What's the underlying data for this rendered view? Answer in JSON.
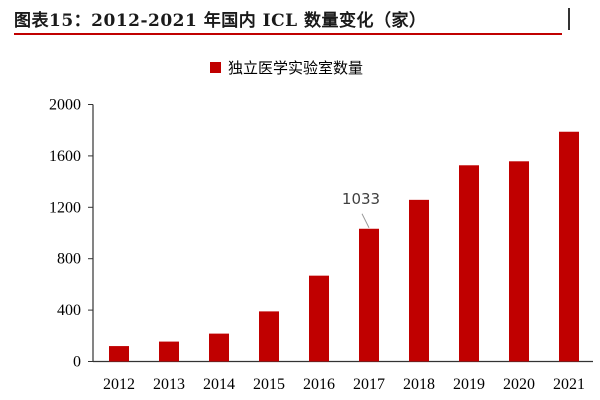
{
  "title": "图表15：2012-2021 年国内 ICL 数量变化（家）",
  "chart_data": {
    "type": "bar",
    "title": "图表15：2012-2021 年国内 ICL 数量变化（家）",
    "categories": [
      "2012",
      "2013",
      "2014",
      "2015",
      "2016",
      "2017",
      "2018",
      "2019",
      "2020",
      "2021"
    ],
    "series": [
      {
        "name": "独立医学实验室数量",
        "values": [
          120,
          155,
          217,
          390,
          668,
          1033,
          1258,
          1527,
          1558,
          1788
        ],
        "color": "#c00000"
      }
    ],
    "data_labels": [
      {
        "category": "2017",
        "text": "1033"
      }
    ],
    "ylim": [
      0,
      2000
    ],
    "yticks": [
      "0",
      "400",
      "800",
      "1200",
      "1600",
      "2000"
    ],
    "grid": false,
    "legend": "top"
  }
}
